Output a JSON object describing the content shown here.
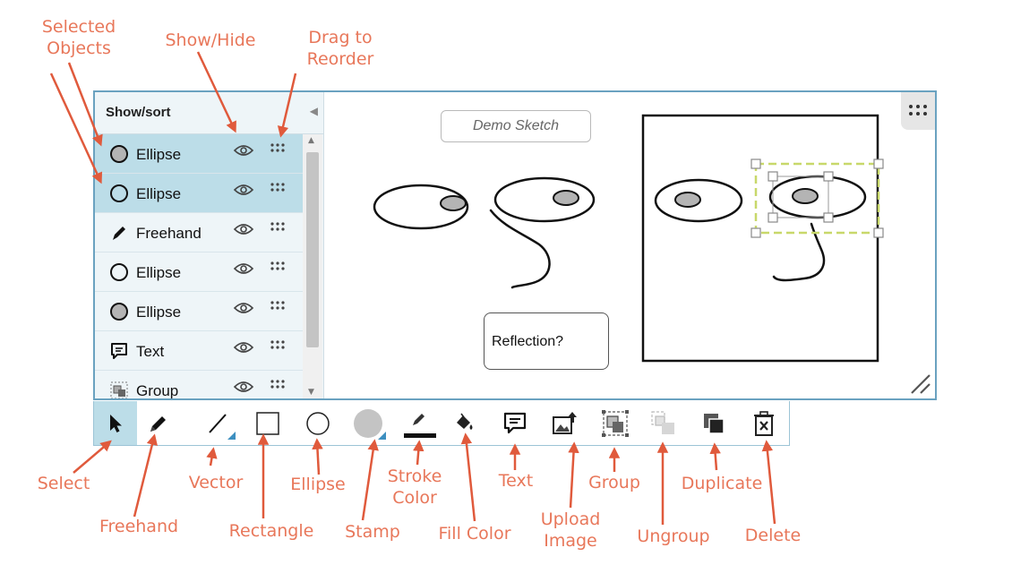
{
  "annotations": {
    "selected_objects": "Selected\nObjects",
    "show_hide": "Show/Hide",
    "drag_to_reorder": "Drag to\nReorder",
    "select": "Select",
    "freehand": "Freehand",
    "vector": "Vector",
    "rectangle": "Rectangle",
    "ellipse": "Ellipse",
    "stamp": "Stamp",
    "stroke_color": "Stroke\nColor",
    "fill_color": "Fill Color",
    "text": "Text",
    "upload_image": "Upload\nImage",
    "group": "Group",
    "ungroup": "Ungroup",
    "duplicate": "Duplicate",
    "delete": "Delete"
  },
  "panel": {
    "title": "Show/sort",
    "items": [
      {
        "label": "Ellipse",
        "icon": "filled-circle-icon",
        "selected": true
      },
      {
        "label": "Ellipse",
        "icon": "outline-circle-icon",
        "selected": true
      },
      {
        "label": "Freehand",
        "icon": "pen-icon",
        "selected": false
      },
      {
        "label": "Ellipse",
        "icon": "outline-circle-icon",
        "selected": false
      },
      {
        "label": "Ellipse",
        "icon": "filled-circle-icon",
        "selected": false
      },
      {
        "label": "Text",
        "icon": "comment-icon",
        "selected": false
      },
      {
        "label": "Group",
        "icon": "group-icon",
        "selected": false
      }
    ]
  },
  "canvas": {
    "demo_label": "Demo Sketch",
    "reflection_text": "Reflection?"
  },
  "toolbar": {
    "tools": [
      "select-arrow-icon",
      "pencil-icon",
      "vector-line-icon",
      "rectangle-icon",
      "ellipse-icon",
      "stamp-icon",
      "stroke-color-icon",
      "fill-bucket-icon",
      "text-comment-icon",
      "upload-image-icon",
      "group-icon",
      "ungroup-icon",
      "duplicate-icon",
      "trash-icon"
    ],
    "active_tool": "select"
  },
  "colors": {
    "annotation": "#e8775a",
    "selection_bg": "#bcdde8",
    "frame_border": "#6aa2c0",
    "selection_handle": "#c8d86a",
    "fill_gray": "#b4b4b4"
  }
}
